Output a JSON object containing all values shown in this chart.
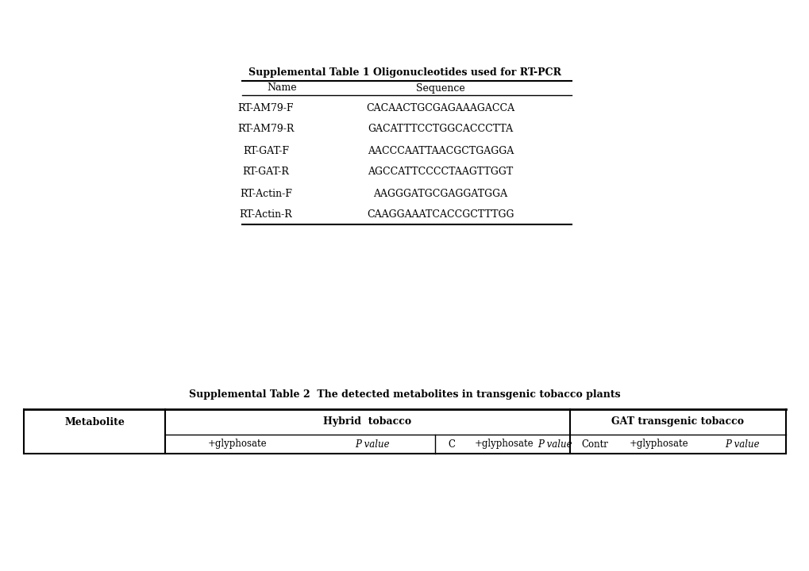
{
  "background_color": "#ffffff",
  "table1_title": "Supplemental Table 1 Oligonucleotides used for RT-PCR",
  "table1_headers": [
    "Name",
    "Sequence"
  ],
  "table1_rows": [
    [
      "RT-AM79-F",
      "CACAACTGCGAGAAAGACCA"
    ],
    [
      "RT-AM79-R",
      "GACATTTCCTGGCACCCTTA"
    ],
    [
      "RT-GAT-F",
      "AACCCAATTAACGCTGAGGA"
    ],
    [
      "RT-GAT-R",
      "AGCCATTCCCCTAAGTTGGT"
    ],
    [
      "RT-Actin-F",
      "AAGGGATGCGAGGATGGA"
    ],
    [
      "RT-Actin-R",
      "CAAGGAAATCACCGCTTTGG"
    ]
  ],
  "table2_title": "Supplemental Table 2  The detected metabolites in transgenic tobacco plants",
  "table2_h1": [
    "Metabolite",
    "Hybrid  tobacco",
    "GAT transgenic tobacco"
  ],
  "table2_h2": [
    "+glyphosate",
    "P value",
    "C",
    "+glyphosate",
    "P value",
    "Contr",
    "+glyphosate",
    "P value"
  ],
  "fig_w": 10.2,
  "fig_h": 7.2,
  "dpi": 100
}
